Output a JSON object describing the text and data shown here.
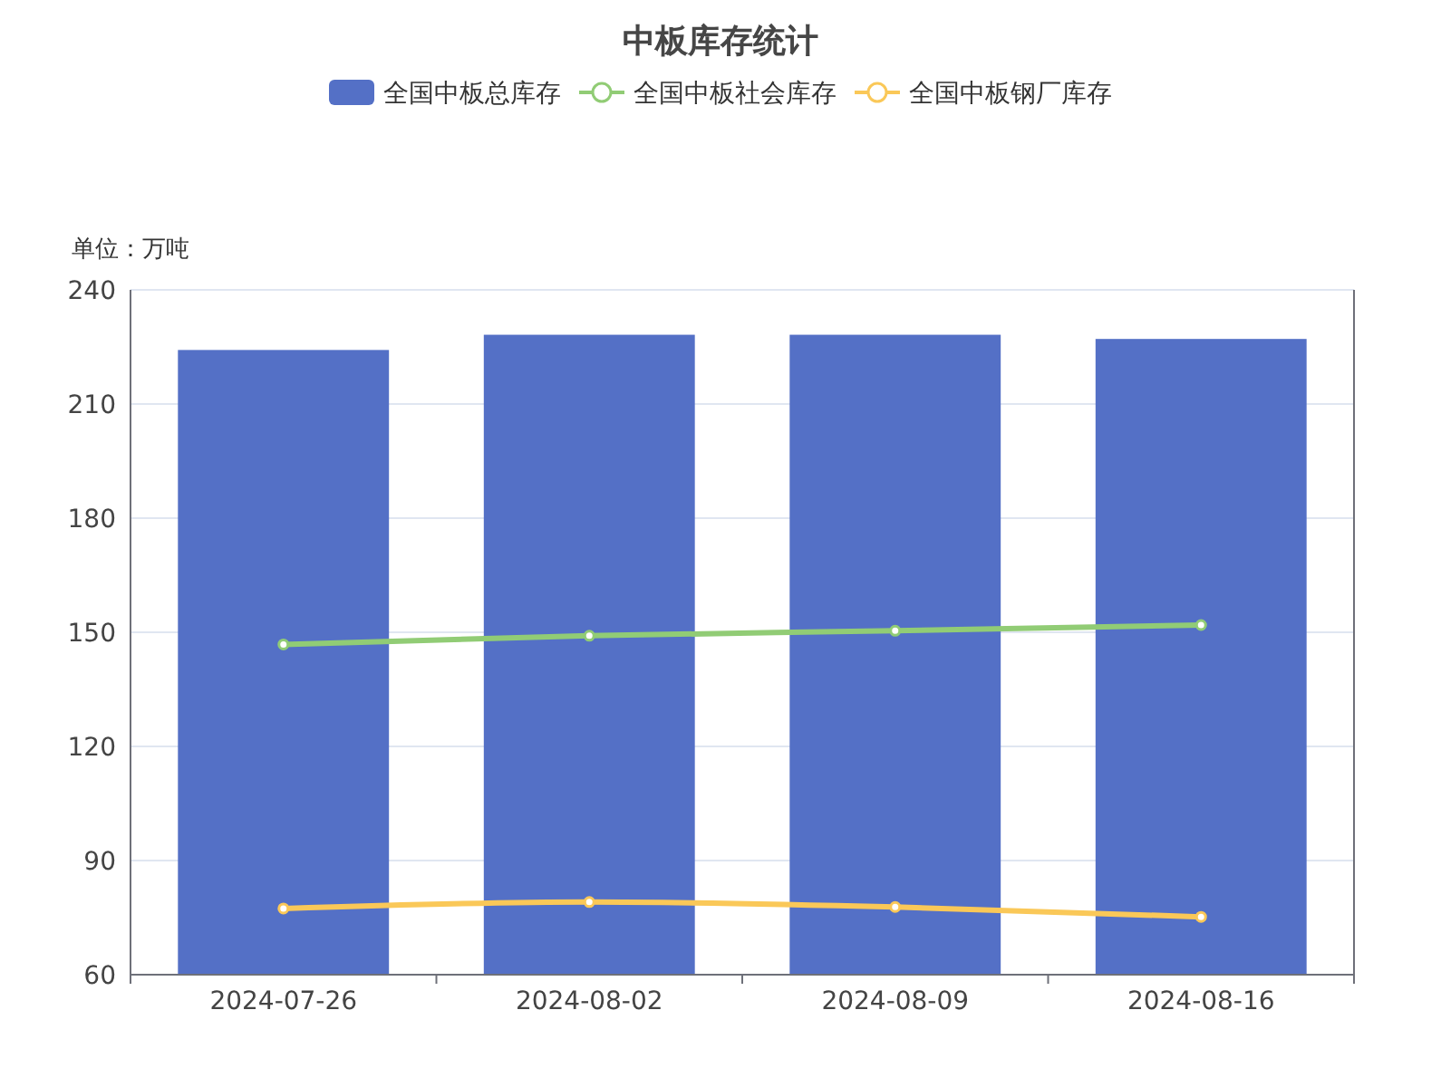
{
  "chart_data": {
    "type": "bar",
    "title": "中板库存统计",
    "ylabel": "单位：万吨",
    "categories": [
      "2024-07-26",
      "2024-08-02",
      "2024-08-09",
      "2024-08-16"
    ],
    "series": [
      {
        "name": "全国中板总库存",
        "color": "#5470c6",
        "values": [
          224.2,
          228.2,
          228.2,
          227.1
        ]
      },
      {
        "name": "全国中板社会库存",
        "type": "line",
        "color": "#91cc75",
        "values": [
          146.8,
          149.1,
          150.4,
          151.9
        ]
      },
      {
        "name": "全国中板钢厂库存",
        "type": "line",
        "color": "#fac858",
        "values": [
          77.4,
          79.1,
          77.8,
          75.2
        ]
      }
    ],
    "ylim": [
      60,
      240
    ],
    "yticks": [
      60,
      90,
      120,
      150,
      180,
      210,
      240
    ],
    "grid": "y",
    "legend": "top",
    "marker": "circle",
    "line_style": "solid"
  }
}
